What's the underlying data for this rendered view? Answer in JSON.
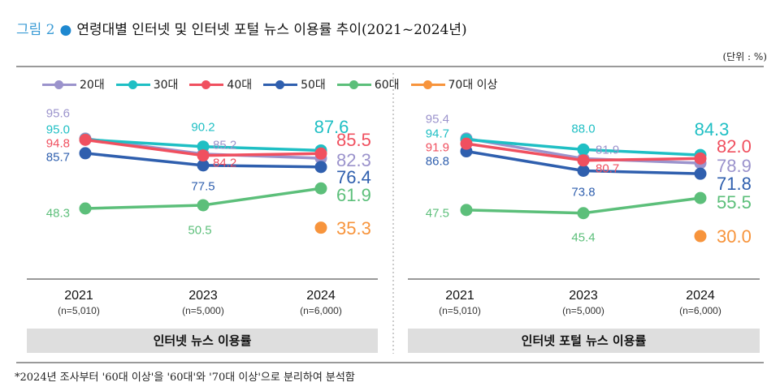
{
  "title": {
    "figure": "그림 2",
    "text": "연령대별 인터넷 및 인터넷 포털 뉴스 이용률 추이(2021~2024년)"
  },
  "unit": "(단위 : %)",
  "legend": [
    {
      "label": "20대",
      "color": "#9b93cc"
    },
    {
      "label": "30대",
      "color": "#1fbfc4"
    },
    {
      "label": "40대",
      "color": "#f0505f"
    },
    {
      "label": "50대",
      "color": "#2f5fae"
    },
    {
      "label": "60대",
      "color": "#5cbf7a"
    },
    {
      "label": "70대 이상",
      "color": "#f7943c"
    }
  ],
  "footnote": "*2024년 조사부터 '60대 이상'을 '60대'와 '70대 이상'으로 분리하여 분석함",
  "chart_data": [
    {
      "type": "line",
      "title": "인터넷 뉴스 이용률",
      "categories": [
        "2021",
        "2023",
        "2024"
      ],
      "category_notes": [
        "(n=5,010)",
        "(n=5,000)",
        "(n=6,000)"
      ],
      "series": [
        {
          "name": "20대",
          "values": [
            95.6,
            85.2,
            82.3
          ]
        },
        {
          "name": "30대",
          "values": [
            95.0,
            90.2,
            87.6
          ]
        },
        {
          "name": "40대",
          "values": [
            94.8,
            84.2,
            85.5
          ]
        },
        {
          "name": "50대",
          "values": [
            85.7,
            77.5,
            76.4
          ]
        },
        {
          "name": "60대",
          "values": [
            48.3,
            50.5,
            61.9
          ]
        },
        {
          "name": "70대 이상",
          "values": [
            null,
            null,
            35.3
          ]
        }
      ]
    },
    {
      "type": "line",
      "title": "인터넷 포털 뉴스 이용률",
      "categories": [
        "2021",
        "2023",
        "2024"
      ],
      "category_notes": [
        "(n=5,010)",
        "(n=5,000)",
        "(n=6,000)"
      ],
      "series": [
        {
          "name": "20대",
          "values": [
            95.4,
            81.9,
            78.9
          ]
        },
        {
          "name": "30대",
          "values": [
            94.7,
            88.0,
            84.3
          ]
        },
        {
          "name": "40대",
          "values": [
            91.9,
            80.7,
            82.0
          ]
        },
        {
          "name": "50대",
          "values": [
            86.8,
            73.8,
            71.8
          ]
        },
        {
          "name": "60대",
          "values": [
            47.5,
            45.4,
            55.5
          ]
        },
        {
          "name": "70대 이상",
          "values": [
            null,
            null,
            30.0
          ]
        }
      ]
    }
  ]
}
